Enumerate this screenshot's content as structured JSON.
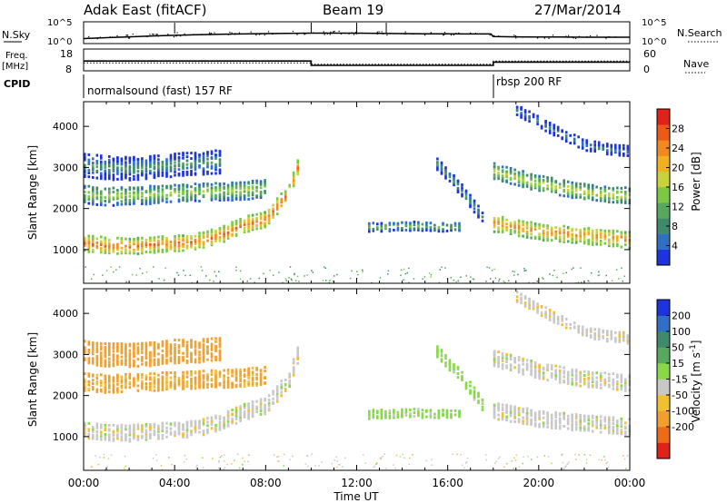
{
  "header": {
    "station": "Adak East (fitACF)",
    "beam": "Beam 19",
    "date": "27/Mar/2014"
  },
  "chart_data": [
    {
      "type": "line",
      "name": "noise-panel",
      "left_label": [
        "N.Sky"
      ],
      "right_label": [
        "N.Search"
      ],
      "left_ticks": [
        "10^5",
        "10^0"
      ],
      "right_ticks": [
        "10^5",
        "10^0"
      ],
      "x_range_hours": [
        0,
        24
      ],
      "y_range_log10": [
        0,
        5
      ],
      "sky_log10": [
        [
          0.0,
          1.15
        ],
        [
          1.0,
          1.35
        ],
        [
          2.0,
          1.55
        ],
        [
          3.0,
          1.75
        ],
        [
          4.0,
          1.9
        ],
        [
          5.0,
          2.05
        ],
        [
          6.0,
          2.15
        ],
        [
          7.0,
          2.2
        ],
        [
          8.0,
          2.3
        ],
        [
          9.0,
          2.35
        ],
        [
          10.0,
          2.4
        ],
        [
          11.0,
          2.4
        ],
        [
          12.0,
          2.4
        ],
        [
          13.0,
          2.35
        ],
        [
          14.0,
          2.3
        ],
        [
          15.0,
          2.25
        ],
        [
          16.0,
          2.25
        ],
        [
          17.0,
          2.2
        ],
        [
          17.9,
          2.2
        ],
        [
          18.0,
          1.6
        ],
        [
          19.0,
          1.55
        ],
        [
          20.0,
          1.5
        ],
        [
          21.0,
          1.5
        ],
        [
          22.0,
          1.45
        ],
        [
          23.0,
          1.45
        ],
        [
          24.0,
          1.45
        ]
      ],
      "spike_hours": [
        4.0,
        10.0,
        12.0,
        13.3
      ]
    },
    {
      "type": "line",
      "name": "frequency-panel",
      "left_label": [
        "Freq.",
        "[MHz]"
      ],
      "right_label": [
        "Nave"
      ],
      "left_ticks": [
        "18",
        "8"
      ],
      "right_ticks": [
        "60",
        "0"
      ],
      "left_range": [
        8,
        18
      ],
      "right_range": [
        0,
        60
      ],
      "freq_mhz": [
        [
          0,
          12.5
        ],
        [
          10.0,
          12.5
        ],
        [
          10.0,
          10.5
        ],
        [
          18.0,
          10.5
        ],
        [
          18.0,
          12.0
        ],
        [
          24.0,
          12.0
        ]
      ],
      "nave": [
        [
          0,
          22
        ],
        [
          10.0,
          22
        ],
        [
          10.0,
          18
        ],
        [
          18.0,
          18
        ],
        [
          18.0,
          27
        ],
        [
          24.0,
          27
        ]
      ]
    },
    {
      "type": "timeline",
      "name": "cpid-bar",
      "label": "CPID",
      "segments": [
        {
          "start_hour": 0,
          "end_hour": 18,
          "text": "normalsound (fast) 157 RF"
        },
        {
          "start_hour": 18,
          "end_hour": 24,
          "text": "rbsp 200 RF"
        }
      ]
    },
    {
      "type": "heatmap",
      "name": "power-panel",
      "ylabel": "Slant Range [km]",
      "yticks": [
        1000,
        2000,
        3000,
        4000
      ],
      "ylim": [
        180,
        4600
      ],
      "xlim_hours": [
        0,
        24
      ],
      "colorbar": {
        "label": "Power [dB]",
        "ticks": [
          4,
          8,
          12,
          16,
          20,
          24,
          28
        ],
        "range": [
          0,
          32
        ],
        "colors": [
          "#1c33dd",
          "#2f6fc8",
          "#3f8a6d",
          "#55a85e",
          "#7ac845",
          "#c8d23a",
          "#f0b020",
          "#f08a20",
          "#ec5a18",
          "#e0221a"
        ]
      },
      "bands": [
        {
          "hours": [
            0,
            1,
            2,
            3,
            4,
            5,
            6,
            7,
            8,
            9,
            9.5
          ],
          "center_km": [
            1150,
            1100,
            1080,
            1120,
            1150,
            1200,
            1350,
            1600,
            1750,
            2400,
            3200
          ],
          "half_width_km": 180,
          "power_db": 26
        },
        {
          "hours": [
            0,
            1,
            2,
            3,
            4,
            5,
            6,
            7,
            8
          ],
          "center_km": [
            2350,
            2300,
            2320,
            2350,
            2380,
            2400,
            2420,
            2450,
            2500
          ],
          "half_width_km": 220,
          "power_db": 16
        },
        {
          "hours": [
            0,
            1,
            2,
            3,
            4,
            5,
            6
          ],
          "center_km": [
            3050,
            3000,
            2980,
            3020,
            3080,
            3100,
            3150
          ],
          "half_width_km": 280,
          "power_db": 10
        },
        {
          "hours": [
            12.5,
            13.5,
            14.5,
            15.5,
            16.5
          ],
          "center_km": [
            1550,
            1560,
            1580,
            1560,
            1550
          ],
          "half_width_km": 100,
          "power_db": 14
        },
        {
          "hours": [
            15.5,
            16.5,
            17.5
          ],
          "center_km": [
            3100,
            2500,
            1800
          ],
          "half_width_km": 150,
          "power_db": 10
        },
        {
          "hours": [
            18,
            19,
            20,
            21,
            22,
            23,
            24
          ],
          "center_km": [
            1650,
            1550,
            1450,
            1400,
            1350,
            1300,
            1250
          ],
          "half_width_km": 200,
          "power_db": 24
        },
        {
          "hours": [
            18,
            19,
            20,
            21,
            22,
            23,
            24
          ],
          "center_km": [
            2900,
            2750,
            2600,
            2500,
            2400,
            2350,
            2300
          ],
          "half_width_km": 180,
          "power_db": 18
        },
        {
          "hours": [
            19,
            20,
            21,
            22,
            23,
            24
          ],
          "center_km": [
            4400,
            4100,
            3800,
            3550,
            3450,
            3400
          ],
          "half_width_km": 120,
          "power_db": 8
        }
      ]
    },
    {
      "type": "heatmap",
      "name": "velocity-panel",
      "ylabel": "Slant Range [km]",
      "yticks": [
        1000,
        2000,
        3000,
        4000
      ],
      "ylim": [
        180,
        4600
      ],
      "xlim_hours": [
        0,
        24
      ],
      "xticks": [
        "00:00",
        "04:00",
        "08:00",
        "12:00",
        "16:00",
        "20:00",
        "00:00"
      ],
      "xlabel": "Time UT",
      "colorbar": {
        "label": "Velocity [m s^-1]",
        "ticks": [
          200,
          100,
          50,
          15,
          -15,
          -50,
          -100,
          -200
        ],
        "colors": [
          "#1c33dd",
          "#2f6fc8",
          "#3f8a6d",
          "#55a85e",
          "#88d84a",
          "#c8c8c8",
          "#f0c030",
          "#f0a030",
          "#ec6a18",
          "#e0221a"
        ]
      },
      "bands": [
        {
          "hours": [
            0,
            1,
            2,
            3,
            4,
            5,
            6,
            7,
            8,
            9,
            9.5
          ],
          "center_km": [
            1150,
            1100,
            1080,
            1120,
            1150,
            1200,
            1350,
            1600,
            1750,
            2400,
            3200
          ],
          "half_width_km": 180,
          "velocity": 0
        },
        {
          "hours": [
            0,
            1,
            2,
            3,
            4,
            5,
            6,
            7,
            8
          ],
          "center_km": [
            2350,
            2300,
            2320,
            2350,
            2380,
            2400,
            2420,
            2450,
            2500
          ],
          "half_width_km": 220,
          "velocity": -60
        },
        {
          "hours": [
            0,
            1,
            2,
            3,
            4,
            5,
            6
          ],
          "center_km": [
            3050,
            3000,
            2980,
            3020,
            3080,
            3100,
            3150
          ],
          "half_width_km": 280,
          "velocity": -80
        },
        {
          "hours": [
            12.5,
            13.5,
            14.5,
            15.5,
            16.5
          ],
          "center_km": [
            1550,
            1560,
            1580,
            1560,
            1550
          ],
          "half_width_km": 100,
          "velocity": 30
        },
        {
          "hours": [
            15.5,
            16.5,
            17.5
          ],
          "center_km": [
            3100,
            2500,
            1800
          ],
          "half_width_km": 150,
          "velocity": 30
        },
        {
          "hours": [
            18,
            19,
            20,
            21,
            22,
            23,
            24
          ],
          "center_km": [
            1650,
            1550,
            1450,
            1400,
            1350,
            1300,
            1250
          ],
          "half_width_km": 200,
          "velocity": 0
        },
        {
          "hours": [
            18,
            19,
            20,
            21,
            22,
            23,
            24
          ],
          "center_km": [
            2900,
            2750,
            2600,
            2500,
            2400,
            2350,
            2300
          ],
          "half_width_km": 180,
          "velocity": 0
        },
        {
          "hours": [
            19,
            20,
            21,
            22,
            23,
            24
          ],
          "center_km": [
            4400,
            4100,
            3800,
            3550,
            3450,
            3400
          ],
          "half_width_km": 120,
          "velocity": -5
        }
      ]
    }
  ]
}
